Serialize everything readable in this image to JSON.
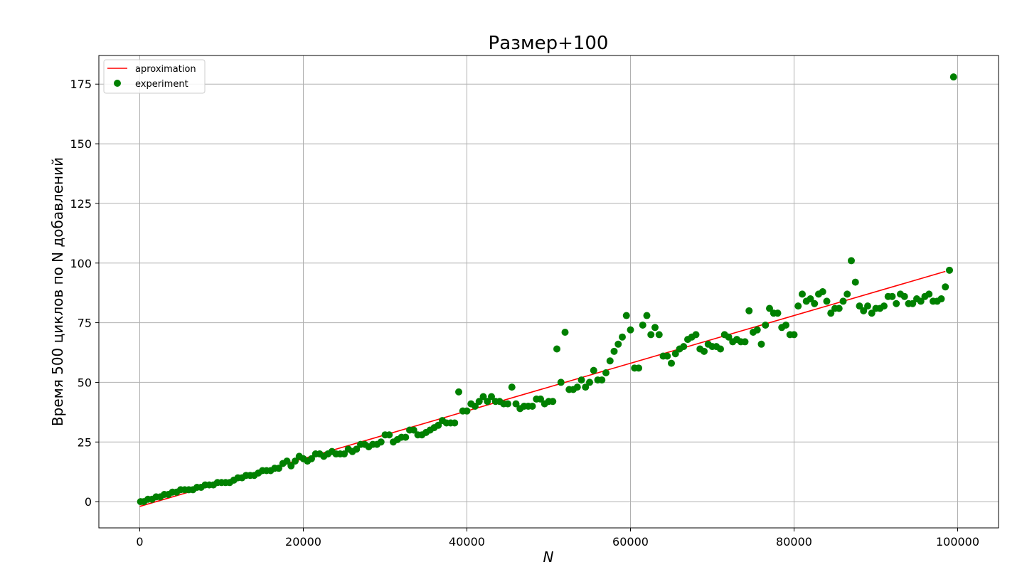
{
  "chart_data": {
    "type": "scatter",
    "title": "Размер+100",
    "xlabel": "N",
    "ylabel": "Время 500 циклов по N добавлений",
    "xlim": [
      -5000,
      105000
    ],
    "ylim": [
      -11,
      187
    ],
    "xticks": [
      0,
      20000,
      40000,
      60000,
      80000,
      100000
    ],
    "yticks": [
      0,
      25,
      50,
      75,
      100,
      125,
      150,
      175
    ],
    "grid": true,
    "legend_position": "top-left",
    "colors": {
      "line": "#ff0000",
      "points": "#008000",
      "grid": "#b0b0b0"
    },
    "series": [
      {
        "name": "aproximation",
        "kind": "line",
        "x": [
          0,
          98500
        ],
        "y": [
          -2,
          96.5
        ]
      },
      {
        "name": "experiment",
        "kind": "scatter",
        "points": [
          [
            100,
            0
          ],
          [
            500,
            0
          ],
          [
            1000,
            1
          ],
          [
            1500,
            1
          ],
          [
            2000,
            2
          ],
          [
            2500,
            2
          ],
          [
            3000,
            3
          ],
          [
            3500,
            3
          ],
          [
            4000,
            4
          ],
          [
            4500,
            4
          ],
          [
            5000,
            5
          ],
          [
            5500,
            5
          ],
          [
            6000,
            5
          ],
          [
            6500,
            5
          ],
          [
            7000,
            6
          ],
          [
            7500,
            6
          ],
          [
            8000,
            7
          ],
          [
            8500,
            7
          ],
          [
            9000,
            7
          ],
          [
            9500,
            8
          ],
          [
            10000,
            8
          ],
          [
            10500,
            8
          ],
          [
            11000,
            8
          ],
          [
            11500,
            9
          ],
          [
            12000,
            10
          ],
          [
            12500,
            10
          ],
          [
            13000,
            11
          ],
          [
            13500,
            11
          ],
          [
            14000,
            11
          ],
          [
            14500,
            12
          ],
          [
            15000,
            13
          ],
          [
            15500,
            13
          ],
          [
            16000,
            13
          ],
          [
            16500,
            14
          ],
          [
            17000,
            14
          ],
          [
            17500,
            16
          ],
          [
            18000,
            17
          ],
          [
            18500,
            15
          ],
          [
            19000,
            17
          ],
          [
            19500,
            19
          ],
          [
            20000,
            18
          ],
          [
            20500,
            17
          ],
          [
            21000,
            18
          ],
          [
            21500,
            20
          ],
          [
            22000,
            20
          ],
          [
            22500,
            19
          ],
          [
            23000,
            20
          ],
          [
            23500,
            21
          ],
          [
            24000,
            20
          ],
          [
            24500,
            20
          ],
          [
            25000,
            20
          ],
          [
            25500,
            22
          ],
          [
            26000,
            21
          ],
          [
            26500,
            22
          ],
          [
            27000,
            24
          ],
          [
            27500,
            24
          ],
          [
            28000,
            23
          ],
          [
            28500,
            24
          ],
          [
            29000,
            24
          ],
          [
            29500,
            25
          ],
          [
            30000,
            28
          ],
          [
            30500,
            28
          ],
          [
            31000,
            25
          ],
          [
            31500,
            26
          ],
          [
            32000,
            27
          ],
          [
            32500,
            27
          ],
          [
            33000,
            30
          ],
          [
            33500,
            30
          ],
          [
            34000,
            28
          ],
          [
            34500,
            28
          ],
          [
            35000,
            29
          ],
          [
            35500,
            30
          ],
          [
            36000,
            31
          ],
          [
            36500,
            32
          ],
          [
            37000,
            34
          ],
          [
            37500,
            33
          ],
          [
            38000,
            33
          ],
          [
            38500,
            33
          ],
          [
            39000,
            46
          ],
          [
            39500,
            38
          ],
          [
            40000,
            38
          ],
          [
            40500,
            41
          ],
          [
            41000,
            40
          ],
          [
            41500,
            42
          ],
          [
            42000,
            44
          ],
          [
            42500,
            42
          ],
          [
            43000,
            44
          ],
          [
            43500,
            42
          ],
          [
            44000,
            42
          ],
          [
            44500,
            41
          ],
          [
            45000,
            41
          ],
          [
            45500,
            48
          ],
          [
            46000,
            41
          ],
          [
            46500,
            39
          ],
          [
            47000,
            40
          ],
          [
            47500,
            40
          ],
          [
            48000,
            40
          ],
          [
            48500,
            43
          ],
          [
            49000,
            43
          ],
          [
            49500,
            41
          ],
          [
            50000,
            42
          ],
          [
            50500,
            42
          ],
          [
            51000,
            64
          ],
          [
            51500,
            50
          ],
          [
            52000,
            71
          ],
          [
            52500,
            47
          ],
          [
            53000,
            47
          ],
          [
            53500,
            48
          ],
          [
            54000,
            51
          ],
          [
            54500,
            48
          ],
          [
            55000,
            50
          ],
          [
            55500,
            55
          ],
          [
            56000,
            51
          ],
          [
            56500,
            51
          ],
          [
            57000,
            54
          ],
          [
            57500,
            59
          ],
          [
            58000,
            63
          ],
          [
            58500,
            66
          ],
          [
            59000,
            69
          ],
          [
            59500,
            78
          ],
          [
            60000,
            72
          ],
          [
            60500,
            56
          ],
          [
            61000,
            56
          ],
          [
            61500,
            74
          ],
          [
            62000,
            78
          ],
          [
            62500,
            70
          ],
          [
            63000,
            73
          ],
          [
            63500,
            70
          ],
          [
            64000,
            61
          ],
          [
            64500,
            61
          ],
          [
            65000,
            58
          ],
          [
            65500,
            62
          ],
          [
            66000,
            64
          ],
          [
            66500,
            65
          ],
          [
            67000,
            68
          ],
          [
            67500,
            69
          ],
          [
            68000,
            70
          ],
          [
            68500,
            64
          ],
          [
            69000,
            63
          ],
          [
            69500,
            66
          ],
          [
            70000,
            65
          ],
          [
            70500,
            65
          ],
          [
            71000,
            64
          ],
          [
            71500,
            70
          ],
          [
            72000,
            69
          ],
          [
            72500,
            67
          ],
          [
            73000,
            68
          ],
          [
            73500,
            67
          ],
          [
            74000,
            67
          ],
          [
            74500,
            80
          ],
          [
            75000,
            71
          ],
          [
            75500,
            72
          ],
          [
            76000,
            66
          ],
          [
            76500,
            74
          ],
          [
            77000,
            81
          ],
          [
            77500,
            79
          ],
          [
            78000,
            79
          ],
          [
            78500,
            73
          ],
          [
            79000,
            74
          ],
          [
            79500,
            70
          ],
          [
            80000,
            70
          ],
          [
            80500,
            82
          ],
          [
            81000,
            87
          ],
          [
            81500,
            84
          ],
          [
            82000,
            85
          ],
          [
            82500,
            83
          ],
          [
            83000,
            87
          ],
          [
            83500,
            88
          ],
          [
            84000,
            84
          ],
          [
            84500,
            79
          ],
          [
            85000,
            81
          ],
          [
            85500,
            81
          ],
          [
            86000,
            84
          ],
          [
            86500,
            87
          ],
          [
            87000,
            101
          ],
          [
            87500,
            92
          ],
          [
            88000,
            82
          ],
          [
            88500,
            80
          ],
          [
            89000,
            82
          ],
          [
            89500,
            79
          ],
          [
            90000,
            81
          ],
          [
            90500,
            81
          ],
          [
            91000,
            82
          ],
          [
            91500,
            86
          ],
          [
            92000,
            86
          ],
          [
            92500,
            83
          ],
          [
            93000,
            87
          ],
          [
            93500,
            86
          ],
          [
            94000,
            83
          ],
          [
            94500,
            83
          ],
          [
            95000,
            85
          ],
          [
            95500,
            84
          ],
          [
            96000,
            86
          ],
          [
            96500,
            87
          ],
          [
            97000,
            84
          ],
          [
            97500,
            84
          ],
          [
            98000,
            85
          ],
          [
            98500,
            90
          ],
          [
            99000,
            97
          ],
          [
            99500,
            178
          ]
        ]
      }
    ]
  }
}
